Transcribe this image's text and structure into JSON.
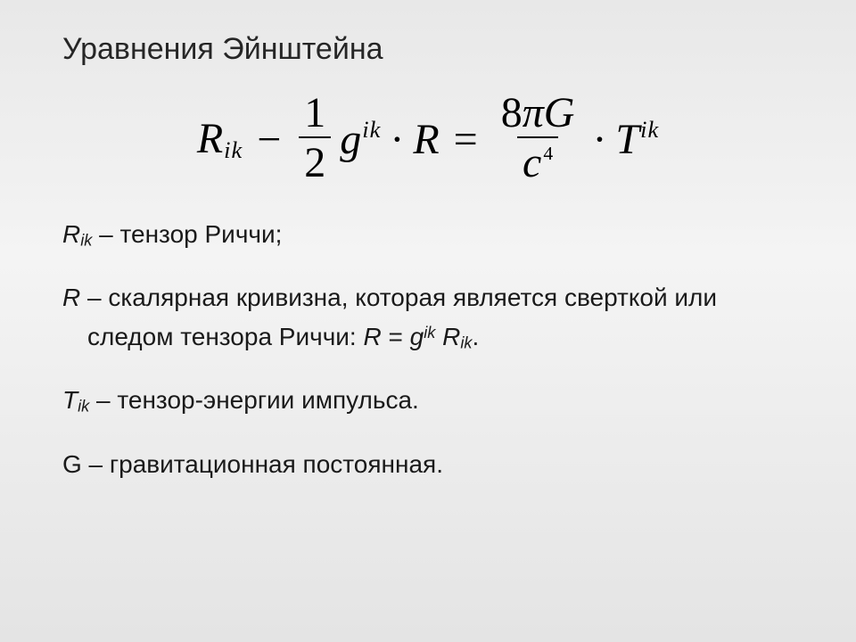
{
  "title": "Уравнения Эйнштейна",
  "equation": {
    "R": "R",
    "ik": "ik",
    "minus": "−",
    "half_num": "1",
    "half_den": "2",
    "g": "g",
    "dot": "·",
    "equals": "=",
    "rhs_num_8": "8",
    "rhs_num_pi": "π",
    "rhs_num_G": "G",
    "rhs_den_c": "c",
    "rhs_den_exp": "4",
    "T": "T"
  },
  "defs": {
    "l1_sym": "R",
    "l1_sub": "ik",
    "l1_txt": " – тензор Риччи;",
    "l2_sym": "R",
    "l2_txt_a": " – скалярная кривизна, которая является сверткой или следом тензора Риччи: ",
    "l2_eq_R": "R",
    "l2_eq_eq": " = ",
    "l2_eq_g": "g",
    "l2_eq_sup": "ik",
    "l2_eq_sp": " ",
    "l2_eq_R2": "R",
    "l2_eq_sub": "ik",
    "l2_eq_dot": ".",
    "l3_sym": "T",
    "l3_sub": "ik",
    "l3_txt": " – тензор-энергии импульса.",
    "l4_sym": "G",
    "l4_txt": " – гравитационная постоянная."
  },
  "style": {
    "title_fontsize": 34,
    "eq_fontsize": 48,
    "body_fontsize": 28,
    "text_color": "#1a1a1a",
    "bg_top": "#e8e8e8",
    "bg_mid": "#f4f4f4",
    "bg_bot": "#e4e4e4"
  }
}
